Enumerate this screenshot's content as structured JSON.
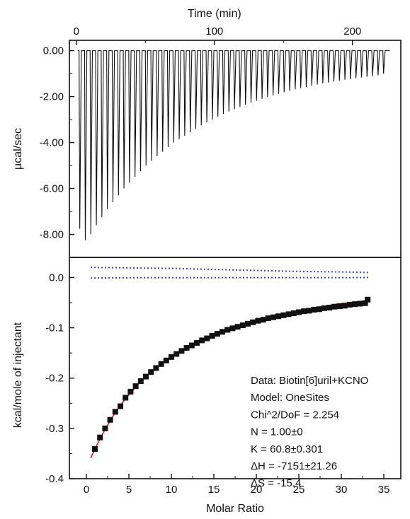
{
  "chart_data": [
    {
      "type": "line",
      "panel": "raw-thermogram",
      "top_xlabel": "Time (min)",
      "ylabel": "µcal/sec",
      "x_axis": {
        "label": "Time (min)",
        "range": [
          -5,
          235
        ],
        "ticks": [
          0,
          100,
          200
        ],
        "tick_labels": [
          "0",
          "100",
          "200"
        ]
      },
      "y_axis": {
        "range": [
          -9.0,
          0.45
        ],
        "ticks": [
          0,
          -2,
          -4,
          -6,
          -8
        ],
        "tick_labels": [
          "0.00",
          "-2.00",
          "-4.00",
          "-6.00",
          "-8.00"
        ]
      },
      "baseline": 0.0,
      "injection_count": 56,
      "injection_times_min": [
        2,
        6,
        10,
        14,
        18,
        22,
        26,
        30,
        34,
        38,
        42,
        46,
        50,
        54,
        58,
        62,
        66,
        70,
        74,
        78,
        82,
        86,
        90,
        94,
        98,
        102,
        106,
        110,
        114,
        118,
        122,
        126,
        130,
        134,
        138,
        142,
        146,
        150,
        154,
        158,
        162,
        166,
        170,
        174,
        178,
        182,
        186,
        190,
        194,
        198,
        202,
        206,
        210,
        214,
        218,
        222
      ],
      "peak_minima": [
        -7.75,
        -8.25,
        -8.0,
        -7.6,
        -7.25,
        -6.9,
        -6.6,
        -6.3,
        -6.0,
        -5.75,
        -5.5,
        -5.25,
        -5.0,
        -4.8,
        -4.6,
        -4.4,
        -4.2,
        -4.0,
        -3.85,
        -3.7,
        -3.55,
        -3.4,
        -3.25,
        -3.12,
        -3.0,
        -2.88,
        -2.76,
        -2.65,
        -2.55,
        -2.45,
        -2.36,
        -2.27,
        -2.18,
        -2.1,
        -2.02,
        -1.95,
        -1.88,
        -1.81,
        -1.75,
        -1.69,
        -1.63,
        -1.58,
        -1.53,
        -1.48,
        -1.43,
        -1.39,
        -1.35,
        -1.31,
        -1.27,
        -1.24,
        -1.2,
        -1.17,
        -1.14,
        -1.11,
        -1.08,
        -1.0
      ],
      "grid": false
    },
    {
      "type": "scatter",
      "panel": "integrated-heats",
      "xlabel": "Molar Ratio",
      "ylabel": "kcal/mole of injectant",
      "x_axis": {
        "range": [
          -2,
          37
        ],
        "ticks": [
          0,
          5,
          10,
          15,
          20,
          25,
          30,
          35
        ],
        "tick_labels": [
          "0",
          "5",
          "10",
          "15",
          "20",
          "25",
          "30",
          "35"
        ]
      },
      "y_axis": {
        "range": [
          -0.4,
          0.04
        ],
        "ticks": [
          0.0,
          -0.1,
          -0.2,
          -0.3,
          -0.4
        ],
        "tick_labels": [
          "0.0",
          "-0.1",
          "-0.2",
          "-0.3",
          "-0.4"
        ]
      },
      "series": [
        {
          "kind": "data-squares",
          "color": "#111111",
          "x": [
            1.0,
            1.6,
            2.2,
            2.8,
            3.4,
            4.0,
            4.6,
            5.2,
            5.8,
            6.4,
            7.0,
            7.6,
            8.2,
            8.8,
            9.4,
            10.0,
            10.6,
            11.2,
            11.8,
            12.4,
            13.0,
            13.6,
            14.2,
            14.8,
            15.4,
            16.0,
            16.6,
            17.2,
            17.8,
            18.4,
            19.0,
            19.6,
            20.2,
            20.8,
            21.4,
            22.0,
            22.6,
            23.2,
            23.8,
            24.4,
            25.0,
            25.6,
            26.2,
            26.8,
            27.4,
            28.0,
            28.6,
            29.2,
            29.8,
            30.4,
            31.0,
            31.6,
            32.2,
            32.8,
            33.1
          ],
          "y": [
            -0.341,
            -0.318,
            -0.3,
            -0.283,
            -0.267,
            -0.256,
            -0.239,
            -0.227,
            -0.216,
            -0.206,
            -0.197,
            -0.188,
            -0.18,
            -0.172,
            -0.165,
            -0.158,
            -0.152,
            -0.146,
            -0.14,
            -0.135,
            -0.13,
            -0.125,
            -0.121,
            -0.116,
            -0.112,
            -0.108,
            -0.104,
            -0.101,
            -0.098,
            -0.095,
            -0.092,
            -0.089,
            -0.086,
            -0.084,
            -0.081,
            -0.079,
            -0.077,
            -0.075,
            -0.073,
            -0.071,
            -0.069,
            -0.067,
            -0.066,
            -0.064,
            -0.063,
            -0.061,
            -0.06,
            -0.058,
            -0.057,
            -0.056,
            -0.054,
            -0.053,
            -0.052,
            -0.051,
            -0.044
          ]
        },
        {
          "kind": "fit-curve",
          "color": "#e0201b",
          "x": [
            0.5,
            1,
            2,
            3,
            4,
            5,
            6,
            7,
            8,
            9,
            10,
            11,
            12,
            13,
            14,
            15,
            16,
            17,
            18,
            19,
            20,
            21,
            22,
            23,
            24,
            25,
            26,
            27,
            28,
            29,
            30,
            31,
            32,
            33.3
          ],
          "y": [
            -0.359,
            -0.341,
            -0.308,
            -0.279,
            -0.254,
            -0.233,
            -0.214,
            -0.197,
            -0.182,
            -0.169,
            -0.158,
            -0.147,
            -0.137,
            -0.129,
            -0.121,
            -0.113,
            -0.107,
            -0.101,
            -0.095,
            -0.09,
            -0.085,
            -0.081,
            -0.077,
            -0.073,
            -0.069,
            -0.066,
            -0.063,
            -0.06,
            -0.057,
            -0.054,
            -0.052,
            -0.05,
            -0.048,
            -0.045
          ]
        },
        {
          "kind": "baseline-upper-dotted",
          "color": "#3d46c9",
          "x": [
            0.5,
            5,
            10,
            15,
            20,
            25,
            30,
            33.3
          ],
          "y": [
            0.02,
            0.019,
            0.018,
            0.016,
            0.014,
            0.012,
            0.011,
            0.01
          ]
        },
        {
          "kind": "baseline-lower-dotted",
          "color": "#3d46c9",
          "x": [
            0.5,
            5,
            10,
            15,
            20,
            25,
            30,
            33.3
          ],
          "y": [
            -0.001,
            -0.0005,
            -0.0005,
            -0.0003,
            -0.0002,
            -0.0002,
            -0.0002,
            -0.0001
          ]
        }
      ],
      "annotations": [
        "Data: Biotin[6]uril+KCNO",
        "Model: OneSites",
        "Chi^2/DoF = 2.254",
        "N = 1.00±0",
        "K = 60.8±0.301",
        "ΔH = -7151±21.26",
        "ΔS = -15.4"
      ],
      "grid": false
    }
  ]
}
